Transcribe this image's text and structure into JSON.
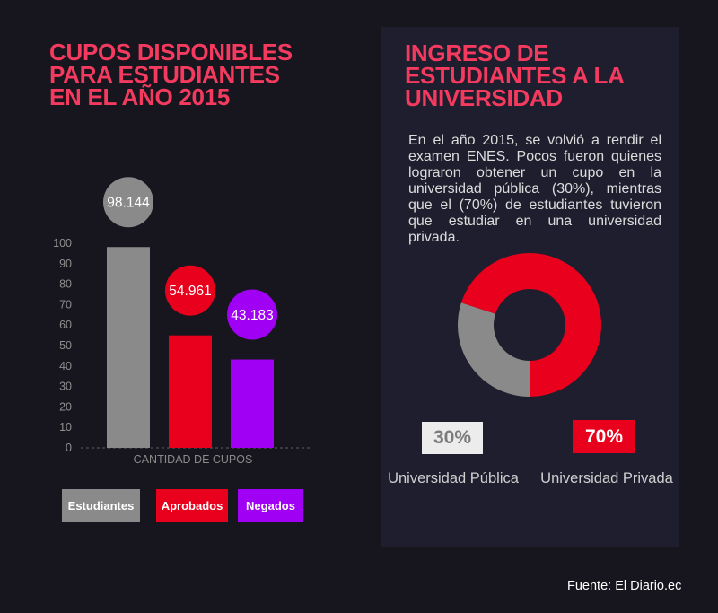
{
  "theme": {
    "background": "#17161e",
    "panel": "#1f1e2e",
    "title": "#f43a5f"
  },
  "chart_data": [
    {
      "type": "bar",
      "title_lines": [
        "CUPOS DISPONIBLES",
        "PARA ESTUDIANTES",
        "EN EL AÑO 2015"
      ],
      "categories": [
        "Estudiantes",
        "Aprobados",
        "Negados"
      ],
      "values": [
        98.144,
        54.961,
        43.183
      ],
      "value_labels": [
        "98.144",
        "54.961",
        "43.183"
      ],
      "colors": [
        "#8a8a8a",
        "#e8001c",
        "#a000f4"
      ],
      "xlabel": "CANTIDAD DE CUPOS",
      "ylim": [
        0,
        100
      ],
      "yticks": [
        0,
        10,
        20,
        30,
        40,
        50,
        60,
        70,
        80,
        90,
        100
      ],
      "grid": false,
      "legend": "bottom"
    },
    {
      "type": "pie",
      "donut": true,
      "title_lines": [
        "INGRESO DE",
        "ESTUDIANTES A LA",
        "UNIVERSIDAD"
      ],
      "labels": [
        "Universidad Pública",
        "Universidad Privada"
      ],
      "values": [
        30,
        70
      ],
      "value_labels": [
        "30%",
        "70%"
      ],
      "colors": [
        "#8a8a8a",
        "#e8001c"
      ],
      "legend": "bottom"
    }
  ],
  "panel": {
    "description_lines": [
      "En el año 2015, se volvió a rendir el",
      "examen ENES. Pocos fueron quienes",
      "lograron obtener un cupo en la",
      "universidad pública (30%), mientras",
      "que el (70%) de estudiantes tuvieron",
      "que estudiar en una universidad",
      "privada."
    ]
  },
  "footer": {
    "source": "Fuente: El Diario.ec"
  }
}
